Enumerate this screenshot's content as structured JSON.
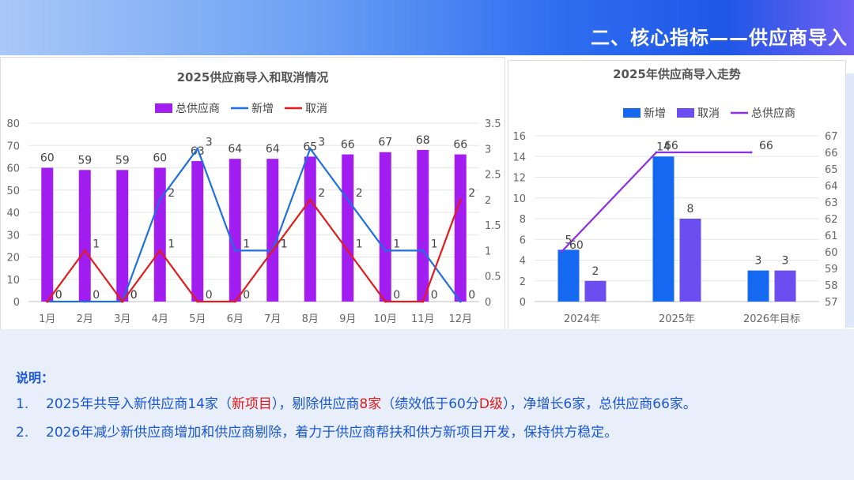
{
  "header": {
    "title": "二、核心指标——供应商导入"
  },
  "chart_data": [
    {
      "type": "bar+line",
      "title": "2025供应商导入和取消情况",
      "categories": [
        "1月",
        "2月",
        "3月",
        "4月",
        "5月",
        "6月",
        "7月",
        "8月",
        "9月",
        "10月",
        "11月",
        "12月"
      ],
      "series": [
        {
          "name": "总供应商",
          "type": "bar",
          "axis": "left",
          "color": "#a21ef0",
          "values": [
            60,
            59,
            59,
            60,
            63,
            64,
            64,
            65,
            66,
            67,
            68,
            66
          ]
        },
        {
          "name": "新增",
          "type": "line",
          "axis": "right",
          "color": "#1f6fe0",
          "values": [
            0,
            0,
            0,
            2,
            3,
            1,
            1,
            3,
            2,
            1,
            1,
            0
          ]
        },
        {
          "name": "取消",
          "type": "line",
          "axis": "right",
          "color": "#e21b1b",
          "values": [
            0,
            1,
            0,
            1,
            0,
            0,
            1,
            2,
            1,
            0,
            0,
            2
          ]
        }
      ],
      "y_left": {
        "min": 0,
        "max": 80,
        "ticks": [
          "0",
          "10",
          "20",
          "30",
          "40",
          "50",
          "60",
          "70",
          "80"
        ]
      },
      "y_right": {
        "min": 0,
        "max": 3.5,
        "ticks": [
          "0",
          "0.5",
          "1",
          "1.5",
          "2",
          "2.5",
          "3",
          "3.5"
        ]
      },
      "legend": "top-center"
    },
    {
      "type": "bar+line",
      "title": "2025年供应商导入走势",
      "categories": [
        "2024年",
        "2025年",
        "2026年目标"
      ],
      "series": [
        {
          "name": "新增",
          "type": "bar",
          "axis": "left",
          "color": "#1469f0",
          "values": [
            5,
            14,
            3
          ]
        },
        {
          "name": "取消",
          "type": "bar",
          "axis": "left",
          "color": "#6b4ef0",
          "values": [
            2,
            8,
            3
          ]
        },
        {
          "name": "总供应商",
          "type": "line",
          "axis": "right",
          "color": "#8b2fe6",
          "values": [
            60,
            66,
            66
          ]
        }
      ],
      "y_left": {
        "min": 0,
        "max": 16,
        "ticks": [
          "0",
          "2",
          "4",
          "6",
          "8",
          "10",
          "12",
          "14",
          "16"
        ]
      },
      "y_right": {
        "min": 57,
        "max": 67,
        "ticks": [
          "57",
          "58",
          "59",
          "60",
          "61",
          "62",
          "63",
          "64",
          "65",
          "66",
          "67"
        ]
      },
      "legend": "top-center"
    }
  ],
  "notes": {
    "title": "说明：",
    "line1": {
      "num": "1.",
      "t1": "2025年共导入新供应商14家（",
      "h1": "新项目",
      "t2": "），剔除供应商",
      "h2": "8家",
      "t3": "（绩效低于60分",
      "h3": "D级",
      "t4": "），净增长6家，总供应商66家。"
    },
    "line2": {
      "num": "2.",
      "text": "2026年减少新供应商增加和供应商剔除，着力于供应商帮扶和供方新项目开发，保持供方稳定。"
    }
  }
}
